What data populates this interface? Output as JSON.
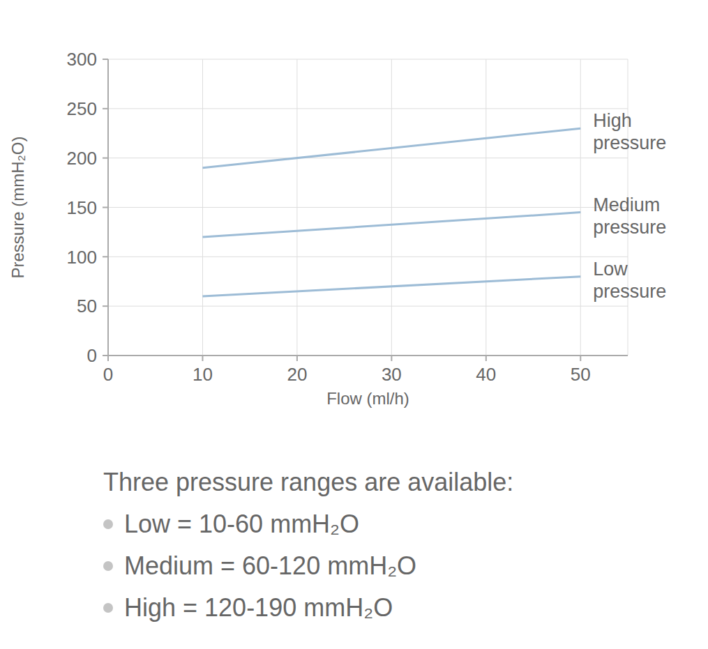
{
  "chart_data": {
    "type": "line",
    "x_label": "Flow (ml/h)",
    "y_label": "Pressure (mmH₂O)",
    "x": [
      10,
      50
    ],
    "series": [
      {
        "name": "High pressure",
        "color": "#9dbcd6",
        "values": [
          190,
          230
        ]
      },
      {
        "name": "Medium pressure",
        "color": "#9dbcd6",
        "values": [
          120,
          145
        ]
      },
      {
        "name": "Low pressure",
        "color": "#9dbcd6",
        "values": [
          60,
          80
        ]
      }
    ],
    "xlim": [
      0,
      55
    ],
    "xticks": [
      0,
      10,
      20,
      30,
      40,
      50
    ],
    "ylim": [
      0,
      300
    ],
    "yticks": [
      0,
      50,
      100,
      150,
      200,
      250,
      300
    ],
    "grid": true,
    "annotation": {
      "text": "Three pressure ranges are available:",
      "items": [
        "Low = 10-60 mmH₂O",
        "Medium = 60-120 mmH₂O",
        "High = 120-190 mmH₂O"
      ]
    }
  }
}
